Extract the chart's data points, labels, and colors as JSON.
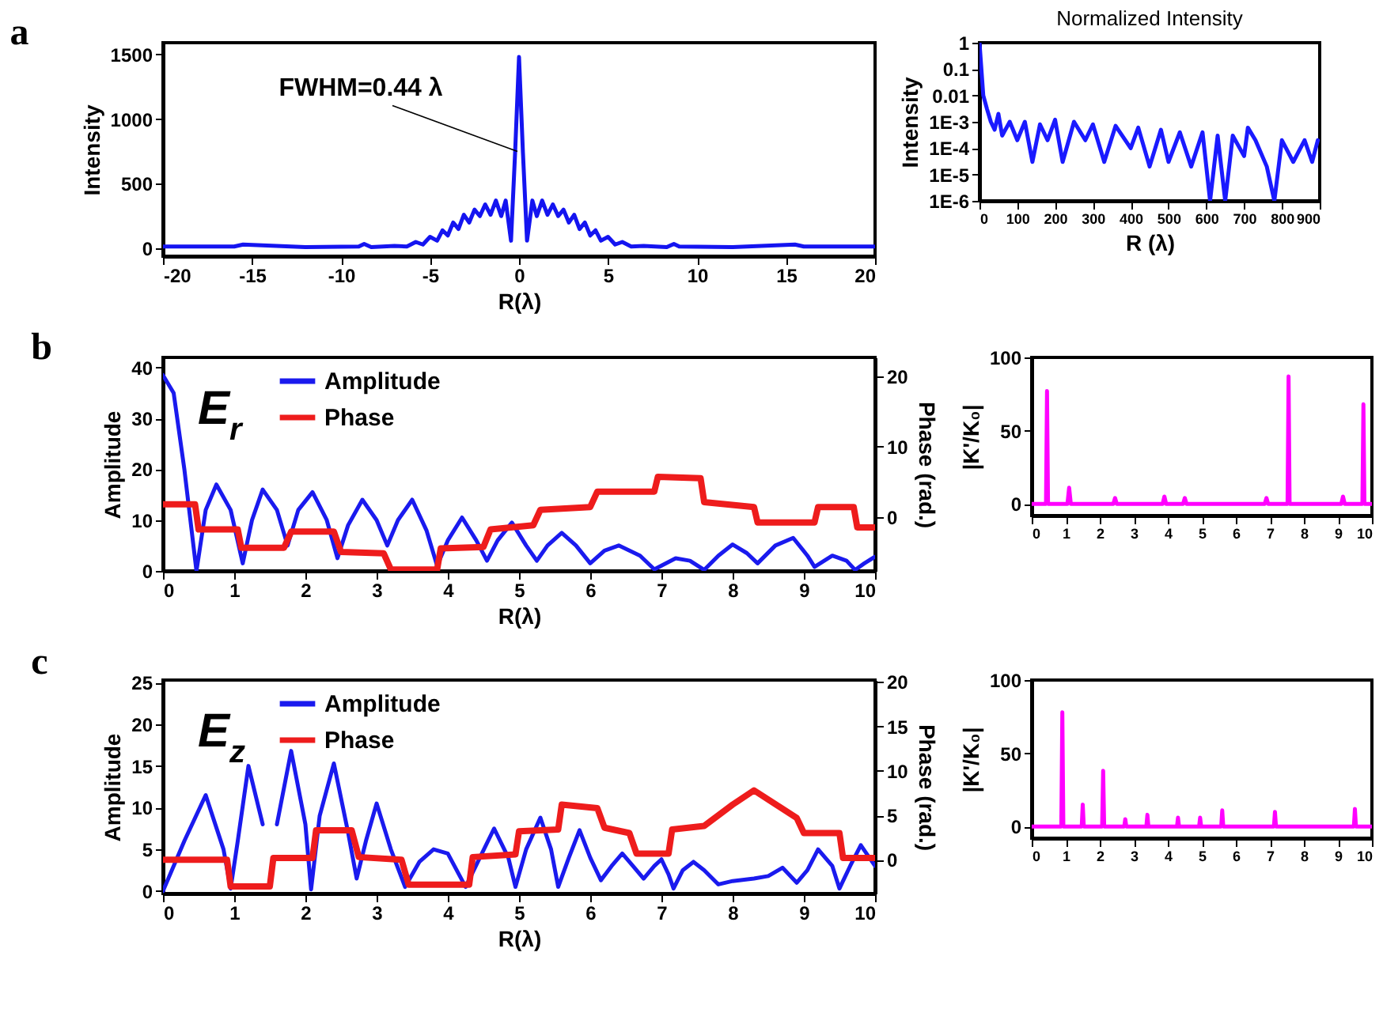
{
  "chart_data": [
    {
      "type": "line",
      "title": "a",
      "xlabel": "R(λ)",
      "ylabel": "Intensity",
      "xlim": [
        -20,
        20
      ],
      "xticks": [
        -20,
        -15,
        -10,
        -5,
        0,
        5,
        10,
        15,
        20
      ],
      "ylim": [
        -60,
        1590
      ],
      "yticks": [
        0,
        500,
        1000,
        1500
      ],
      "grid": false,
      "annotations": [
        {
          "text": "FWHM=0.44 λ",
          "x": 0,
          "y": 750
        }
      ],
      "x": [
        -20,
        -16,
        -15.5,
        -12,
        -9,
        -8.7,
        -8.3,
        -7,
        -6.3,
        -5.8,
        -5.4,
        -5.0,
        -4.6,
        -4.3,
        -4.0,
        -3.7,
        -3.4,
        -3.1,
        -2.8,
        -2.5,
        -2.2,
        -1.9,
        -1.6,
        -1.3,
        -1.0,
        -0.75,
        -0.45,
        -0.22,
        0,
        0.22,
        0.45,
        0.75,
        1.0,
        1.3,
        1.6,
        1.9,
        2.2,
        2.5,
        2.8,
        3.1,
        3.4,
        3.7,
        4.0,
        4.3,
        4.6,
        5.0,
        5.4,
        5.8,
        6.3,
        7,
        8.3,
        8.7,
        9,
        12,
        15.5,
        16,
        20
      ],
      "series": [
        {
          "color": "#1414f0",
          "values": [
            15,
            15,
            30,
            10,
            15,
            35,
            10,
            20,
            15,
            50,
            30,
            90,
            60,
            140,
            100,
            200,
            150,
            260,
            200,
            300,
            250,
            340,
            260,
            370,
            250,
            370,
            60,
            740,
            1480,
            740,
            60,
            370,
            250,
            370,
            260,
            340,
            250,
            300,
            200,
            260,
            150,
            200,
            100,
            140,
            60,
            90,
            30,
            50,
            15,
            20,
            10,
            35,
            15,
            10,
            30,
            15,
            15
          ]
        }
      ]
    },
    {
      "type": "line",
      "title": "Normalized Intensity",
      "xlabel": "R (λ)",
      "ylabel": "Intensity",
      "log": true,
      "xlim": [
        0,
        900
      ],
      "xticks": [
        0,
        100,
        200,
        300,
        400,
        500,
        600,
        700,
        800,
        900
      ],
      "ylim": [
        1e-06,
        1
      ],
      "yticks": [
        1,
        0.1,
        0.01,
        {
          "value": 0.001,
          "label": "1E-3"
        },
        {
          "value": 0.0001,
          "label": "1E-4"
        },
        {
          "value": 1e-05,
          "label": "1E-5"
        },
        {
          "value": 1e-06,
          "label": "1E-6"
        }
      ],
      "grid": false,
      "x": [
        0,
        5,
        10,
        20,
        30,
        40,
        50,
        60,
        80,
        100,
        120,
        140,
        160,
        180,
        200,
        220,
        250,
        280,
        300,
        330,
        360,
        400,
        420,
        450,
        480,
        500,
        530,
        560,
        590,
        610,
        630,
        650,
        670,
        700,
        710,
        730,
        760,
        780,
        800,
        830,
        860,
        880,
        895
      ],
      "series": [
        {
          "color": "#1a1aff",
          "values": [
            1,
            0.1,
            0.01,
            0.003,
            0.001,
            0.0005,
            0.002,
            0.0003,
            0.001,
            0.0002,
            0.001,
            3e-05,
            0.0008,
            0.0002,
            0.0012,
            3e-05,
            0.001,
            0.0002,
            0.0008,
            3e-05,
            0.0007,
            0.0001,
            0.0006,
            2e-05,
            0.0005,
            3e-05,
            0.0004,
            2e-05,
            0.0004,
            1e-06,
            0.0003,
            1e-06,
            0.0003,
            5e-05,
            0.0006,
            0.0002,
            2e-05,
            1e-06,
            0.0002,
            3e-05,
            0.0002,
            3e-05,
            0.0002
          ]
        }
      ]
    },
    {
      "type": "line",
      "title": "b",
      "xlabel": "R(λ)",
      "ylabel": "Amplitude",
      "y2label": "Phase (rad.)",
      "xlim": [
        0,
        10
      ],
      "xticks": [
        0,
        1,
        2,
        3,
        4,
        5,
        6,
        7,
        8,
        9,
        10
      ],
      "ylim": [
        0,
        42
      ],
      "yticks": [
        0,
        10,
        20,
        30,
        40
      ],
      "y2lim": [
        -7.7,
        22.7
      ],
      "y2ticks": [
        0,
        10,
        20
      ],
      "grid": false,
      "legend": "top left",
      "annotations": [
        "E$_{r}$"
      ],
      "series": [
        {
          "name": "Amplitude",
          "color": "#1a1aee",
          "x": [
            0,
            0.15,
            0.3,
            0.47,
            0.6,
            0.75,
            0.95,
            1.12,
            1.25,
            1.4,
            1.6,
            1.75,
            1.9,
            2.1,
            2.3,
            2.45,
            2.6,
            2.8,
            3.0,
            3.15,
            3.3,
            3.5,
            3.7,
            3.85,
            4.0,
            4.2,
            4.4,
            4.55,
            4.7,
            4.9,
            5.1,
            5.25,
            5.4,
            5.6,
            5.8,
            6.0,
            6.2,
            6.4,
            6.7,
            6.9,
            7.2,
            7.4,
            7.6,
            7.8,
            8.0,
            8.2,
            8.35,
            8.6,
            8.85,
            9.05,
            9.15,
            9.4,
            9.6,
            9.72,
            9.85,
            10
          ],
          "values": [
            38.5,
            35,
            20,
            0,
            12,
            17,
            12,
            1.5,
            10,
            16,
            12,
            5,
            12,
            15.5,
            10,
            2.5,
            9,
            14,
            10,
            5,
            10,
            14,
            8,
            1,
            6,
            10.5,
            6,
            2,
            6,
            9.5,
            5,
            2,
            5,
            7.5,
            5,
            1.5,
            4,
            5,
            3,
            0.3,
            2.5,
            2,
            0.2,
            3,
            5.2,
            3.5,
            1.5,
            5,
            6.5,
            3,
            0.8,
            3,
            2,
            0.2,
            1.5,
            2.8
          ]
        },
        {
          "name": "Phase",
          "color": "#ee1c1c",
          "axis": "y2",
          "x": [
            0,
            0.45,
            0.5,
            1.05,
            1.1,
            1.7,
            1.8,
            2.4,
            2.5,
            3.1,
            3.2,
            3.85,
            3.9,
            4.5,
            4.6,
            5.2,
            5.3,
            6.0,
            6.1,
            6.9,
            6.95,
            7.55,
            7.6,
            8.3,
            8.35,
            9.15,
            9.2,
            9.7,
            9.75,
            10
          ],
          "values": [
            1.8,
            1.8,
            -1.8,
            -1.8,
            -4.4,
            -4.4,
            -2.1,
            -2.1,
            -5,
            -5.2,
            -7.5,
            -7.5,
            -4.5,
            -4.3,
            -1.8,
            -1.2,
            1,
            1.4,
            3.6,
            3.6,
            5.7,
            5.5,
            2.1,
            1.4,
            -0.8,
            -0.8,
            1.4,
            1.4,
            -1.5,
            -1.5
          ]
        }
      ]
    },
    {
      "type": "line",
      "ylabel": "|K'/K₀|",
      "xlim": [
        0,
        10
      ],
      "xticks": [
        0,
        1,
        2,
        3,
        4,
        5,
        6,
        7,
        8,
        9,
        10
      ],
      "ylim": [
        -8,
        100
      ],
      "yticks": [
        0,
        50,
        100
      ],
      "grid": false,
      "series": [
        {
          "color": "#ff00ff",
          "x": [
            0,
            0.42,
            0.45,
            0.48,
            1.05,
            1.1,
            1.15,
            2.4,
            2.45,
            2.5,
            3.85,
            3.9,
            3.95,
            4.45,
            4.5,
            4.55,
            6.85,
            6.9,
            6.95,
            7.52,
            7.55,
            7.58,
            9.1,
            9.15,
            9.2,
            9.72,
            9.75,
            9.78,
            10
          ],
          "values": [
            0,
            0,
            77,
            0,
            0,
            11,
            0,
            0,
            4,
            0,
            0,
            5,
            0,
            0,
            4,
            0,
            0,
            4,
            0,
            0,
            87,
            0,
            0,
            5,
            0,
            0,
            68,
            0,
            0
          ]
        }
      ]
    },
    {
      "type": "line",
      "title": "c",
      "xlabel": "R(λ)",
      "ylabel": "Amplitude",
      "y2label": "Phase (rad.)",
      "xlim": [
        0,
        10
      ],
      "xticks": [
        0,
        1,
        2,
        3,
        4,
        5,
        6,
        7,
        8,
        9,
        10
      ],
      "ylim": [
        -0.3,
        25.3
      ],
      "yticks": [
        0,
        5,
        10,
        15,
        20,
        25
      ],
      "y2lim": [
        -3.8,
        20.2
      ],
      "y2ticks": [
        0,
        5,
        10,
        15,
        20
      ],
      "grid": false,
      "legend": "top left",
      "annotations": [
        "E$_{z}$"
      ],
      "series": [
        {
          "name": "Amplitude",
          "color": "#1a1aee",
          "x": [
            0,
            0.3,
            0.6,
            0.85,
            0.95,
            1.05,
            1.2,
            1.4,
            1.5,
            1.6,
            1.8,
            2.0,
            2.08,
            2.2,
            2.4,
            2.6,
            2.72,
            2.85,
            3.0,
            3.2,
            3.4,
            3.6,
            3.8,
            4.0,
            4.25,
            4.45,
            4.65,
            4.85,
            4.95,
            5.1,
            5.3,
            5.45,
            5.55,
            5.7,
            5.85,
            6.0,
            6.15,
            6.3,
            6.45,
            6.6,
            6.75,
            6.9,
            7.0,
            7.1,
            7.17,
            7.3,
            7.45,
            7.6,
            7.8,
            8.0,
            8.3,
            8.5,
            8.7,
            8.9,
            9.05,
            9.2,
            9.4,
            9.5,
            9.65,
            9.8,
            10
          ],
          "values": [
            0,
            6,
            11.5,
            5,
            0.3,
            6,
            15,
            8,
            null,
            8,
            16.8,
            8,
            0.2,
            9,
            15.3,
            7,
            1.5,
            6,
            10.5,
            5,
            0.5,
            3.5,
            5,
            4.5,
            0.5,
            4,
            7.5,
            4,
            0.5,
            5,
            8.8,
            5,
            0.5,
            4,
            7.3,
            4,
            1.3,
            3,
            4.5,
            3,
            1.5,
            3,
            3.8,
            2,
            0.3,
            2.5,
            3.5,
            2.5,
            0.8,
            1.2,
            1.5,
            1.8,
            2.8,
            1,
            2.5,
            5,
            3,
            0.3,
            3,
            5.5,
            3
          ]
        },
        {
          "name": "Phase",
          "color": "#ee1c1c",
          "axis": "y2",
          "x": [
            0,
            0.9,
            0.95,
            1.5,
            1.55,
            2.1,
            2.15,
            2.65,
            2.75,
            3.35,
            3.45,
            4.3,
            4.35,
            4.95,
            5.0,
            5.55,
            5.6,
            6.1,
            6.2,
            6.55,
            6.65,
            7.1,
            7.15,
            7.6,
            8.0,
            8.3,
            8.9,
            9.0,
            9.5,
            9.55,
            10
          ],
          "values": [
            0,
            0,
            -3,
            -3,
            0.2,
            0.2,
            3.3,
            3.3,
            0.3,
            0,
            -2.8,
            -2.8,
            0.3,
            0.6,
            3.2,
            3.4,
            6.2,
            5.8,
            3.6,
            3,
            0.7,
            0.7,
            3.4,
            3.8,
            6.2,
            7.8,
            4.7,
            3,
            3,
            0.2,
            0.2
          ]
        }
      ]
    },
    {
      "type": "line",
      "ylabel": "|K'/K₀|",
      "xlim": [
        0,
        10
      ],
      "xticks": [
        0,
        1,
        2,
        3,
        4,
        5,
        6,
        7,
        8,
        9,
        10
      ],
      "ylim": [
        -8,
        100
      ],
      "yticks": [
        0,
        50,
        100
      ],
      "grid": false,
      "series": [
        {
          "color": "#ff00ff",
          "x": [
            0,
            0.87,
            0.9,
            0.93,
            1.47,
            1.5,
            1.53,
            2.07,
            2.1,
            2.13,
            2.72,
            2.75,
            2.78,
            3.37,
            3.4,
            3.43,
            4.27,
            4.3,
            4.33,
            4.92,
            4.95,
            4.98,
            5.57,
            5.6,
            5.63,
            7.12,
            7.15,
            7.18,
            9.47,
            9.5,
            9.53,
            10
          ],
          "values": [
            0,
            0,
            78,
            0,
            0,
            15,
            0,
            0,
            38,
            0,
            0,
            5,
            0,
            0,
            8,
            0,
            0,
            6,
            0,
            0,
            6,
            0,
            0,
            11,
            0,
            0,
            10,
            0,
            0,
            12,
            0,
            0
          ]
        }
      ]
    }
  ]
}
